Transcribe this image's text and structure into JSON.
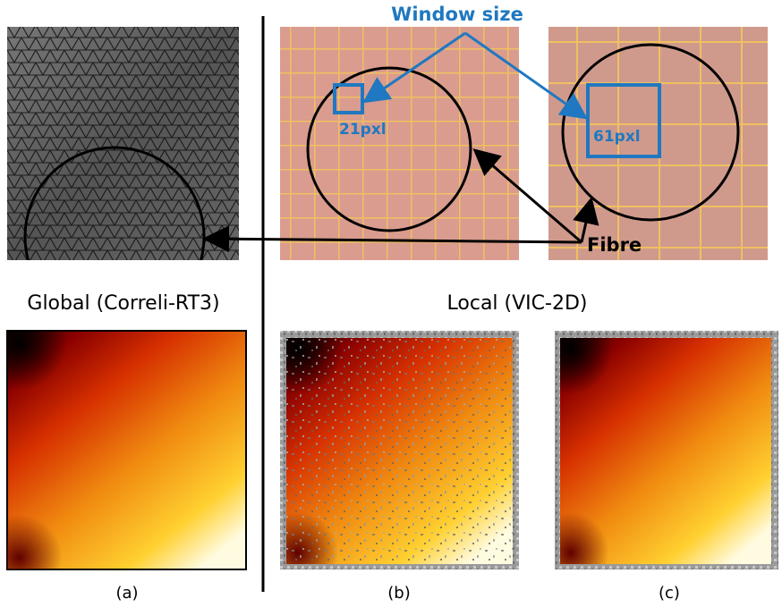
{
  "labels": {
    "window_size": "Window size",
    "window_small": "21pxl",
    "window_large": "61pxl",
    "fibre": "Fibre",
    "global": "Global (Correli-RT3)",
    "local": "Local (VIC-2D)",
    "panel_a": "(a)",
    "panel_b": "(b)",
    "panel_c": "(c)"
  },
  "colors": {
    "annotation_blue": "#1f78c1",
    "circle_black": "#000000",
    "grid_yellow": "#f2c14e",
    "pink_bg": "#d69a8c"
  }
}
